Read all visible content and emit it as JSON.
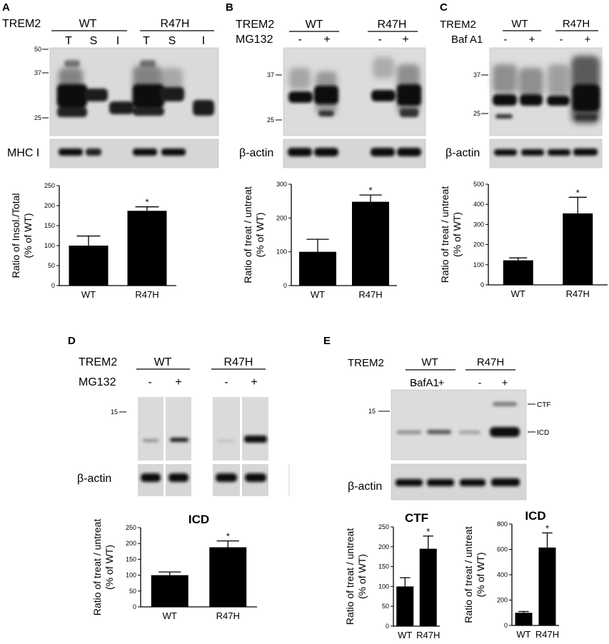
{
  "panels": {
    "A": {
      "label": "A",
      "header": {
        "protein": "TREM2",
        "groups": [
          "WT",
          "R47H"
        ],
        "lanes": [
          "T",
          "S",
          "I",
          "T",
          "S",
          "I"
        ]
      },
      "mw_markers": [
        "50",
        "37",
        "25"
      ],
      "loading_label": "MHC I"
    },
    "B": {
      "label": "B",
      "header": {
        "protein": "TREM2",
        "treatment": "MG132",
        "groups": [
          "WT",
          "R47H"
        ],
        "lanes": [
          "-",
          "+",
          "-",
          "+"
        ]
      },
      "mw_markers": [
        "37",
        "25"
      ],
      "loading_label": "β-actin"
    },
    "C": {
      "label": "C",
      "header": {
        "protein": "TREM2",
        "treatment": "Baf A1",
        "groups": [
          "WT",
          "R47H"
        ],
        "lanes": [
          "-",
          "+",
          "-",
          "+"
        ]
      },
      "mw_markers": [
        "37",
        "25"
      ],
      "loading_label": "β-actin"
    },
    "D": {
      "label": "D",
      "header": {
        "protein": "TREM2",
        "treatment": "MG132",
        "groups": [
          "WT",
          "R47H"
        ],
        "lanes": [
          "-",
          "+",
          "-",
          "+"
        ]
      },
      "mw_markers": [
        "15"
      ],
      "loading_label": "β-actin"
    },
    "E": {
      "label": "E",
      "header": {
        "protein": "TREM2",
        "treatment": "BafA1",
        "groups": [
          "WT",
          "R47H"
        ],
        "lanes": [
          "-",
          "+",
          "-",
          "+"
        ]
      },
      "mw_markers": [
        "15"
      ],
      "band_labels": [
        "CTF",
        "ICD"
      ],
      "loading_label": "β-actin"
    }
  },
  "colors": {
    "bar": "#000000",
    "background": "#ffffff",
    "blot": "#d9d9d9"
  },
  "chart_data": [
    {
      "id": "A",
      "type": "bar",
      "title": "",
      "categories": [
        "WT",
        "R47H"
      ],
      "values": [
        100,
        187
      ],
      "errors": [
        24,
        10
      ],
      "significance": [
        "",
        "*"
      ],
      "ylabel": "Ratio of Insol./Total (% of WT)",
      "ylim": [
        0,
        250
      ],
      "yticks": [
        "0",
        "50",
        "100",
        "150",
        "200",
        "250"
      ]
    },
    {
      "id": "B",
      "type": "bar",
      "title": "",
      "categories": [
        "WT",
        "R47H"
      ],
      "values": [
        100,
        248
      ],
      "errors": [
        37,
        20
      ],
      "significance": [
        "",
        "*"
      ],
      "ylabel": "Ratio of treat / untreat (% of WT)",
      "ylim": [
        0,
        300
      ],
      "yticks": [
        "0",
        "100",
        "200",
        "300"
      ]
    },
    {
      "id": "C",
      "type": "bar",
      "title": "",
      "categories": [
        "WT",
        "R47H"
      ],
      "values": [
        122,
        355
      ],
      "errors": [
        12,
        80
      ],
      "significance": [
        "",
        "*"
      ],
      "ylabel": "Ratio of treat / untreat (% of WT)",
      "ylim": [
        0,
        500
      ],
      "yticks": [
        "0",
        "100",
        "200",
        "300",
        "400",
        "500"
      ]
    },
    {
      "id": "D",
      "type": "bar",
      "title": "ICD",
      "categories": [
        "WT",
        "R47H"
      ],
      "values": [
        100,
        188
      ],
      "errors": [
        10,
        20
      ],
      "significance": [
        "",
        "*"
      ],
      "ylabel": "Ratio of treat / untreat (% of WT)",
      "ylim": [
        0,
        250
      ],
      "yticks": [
        "0",
        "50",
        "100",
        "150",
        "200",
        "250"
      ]
    },
    {
      "id": "E1",
      "type": "bar",
      "title": "CTF",
      "categories": [
        "WT",
        "R47H"
      ],
      "values": [
        100,
        195
      ],
      "errors": [
        22,
        32
      ],
      "significance": [
        "",
        "*"
      ],
      "ylabel": "Ratio of treat / untreat (% of WT)",
      "ylim": [
        0,
        250
      ],
      "yticks": [
        "0",
        "50",
        "100",
        "150",
        "200",
        "250"
      ]
    },
    {
      "id": "E2",
      "type": "bar",
      "title": "ICD",
      "categories": [
        "WT",
        "R47H"
      ],
      "values": [
        100,
        615
      ],
      "errors": [
        10,
        115
      ],
      "significance": [
        "",
        "*"
      ],
      "ylabel": "Ratio of treat / untreat (% of WT)",
      "ylim": [
        0,
        800
      ],
      "yticks": [
        "0",
        "200",
        "400",
        "600",
        "800"
      ]
    }
  ]
}
